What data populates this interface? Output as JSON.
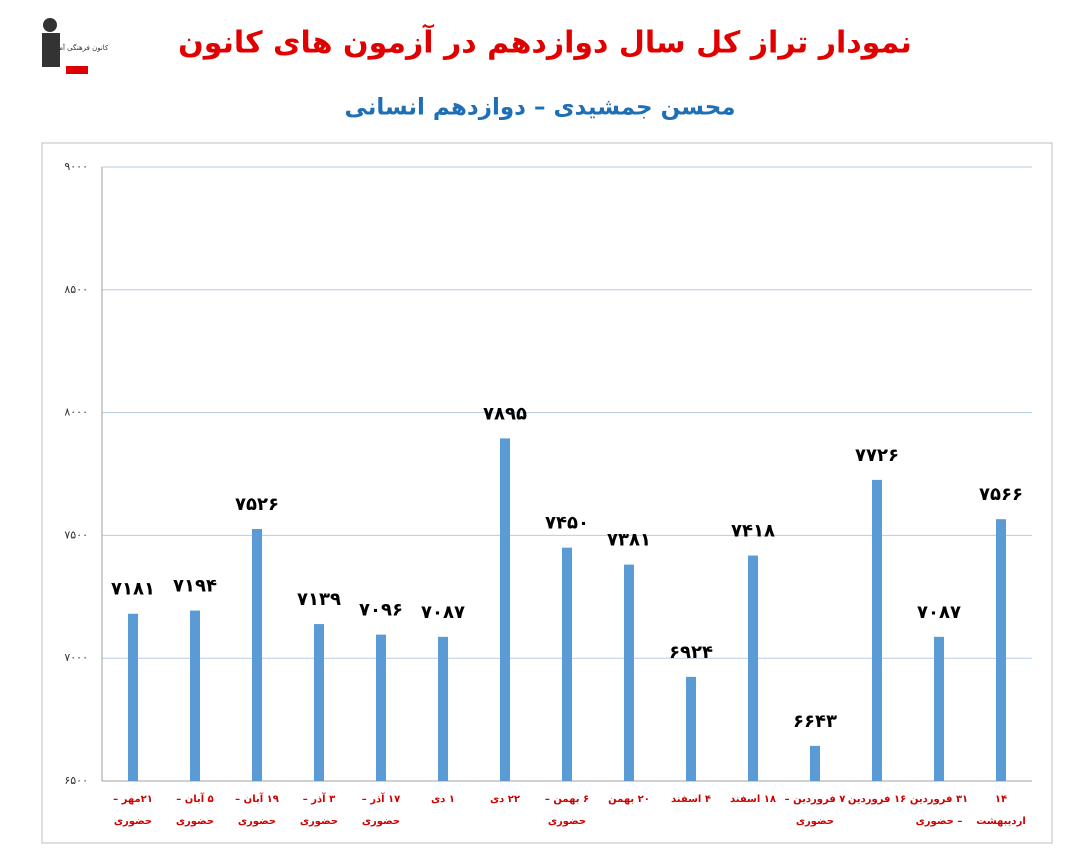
{
  "logo": "کانون فرهنگی آموزش",
  "chart_data": {
    "type": "bar",
    "title": "نمودار تراز کل سال دوازدهم در آزمون های کانون",
    "subtitle": "محسن جمشیدی – دوازدهم انسانی",
    "categories": [
      "۲۱مهر – حضوری",
      "۵ آبان – حضوری",
      "۱۹ آبان – حضوری",
      "۳ آذر – حضوری",
      "۱۷ آذر – حضوری",
      "۱ دی",
      "۲۲ دی",
      "۶ بهمن – حضوری",
      "۲۰ بهمن",
      "۴ اسفند",
      "۱۸ اسفند",
      "۷ فروردین – حضوری",
      "۱۶ فروردین",
      "۳۱ فروردین – حضوری",
      "۱۴ اردیبهشت"
    ],
    "values": [
      7181,
      7194,
      7526,
      7139,
      7096,
      7087,
      7895,
      7450,
      7381,
      6924,
      7418,
      6643,
      7726,
      7087,
      7566
    ],
    "value_labels": [
      "۷۱۸۱",
      "۷۱۹۴",
      "۷۵۲۶",
      "۷۱۳۹",
      "۷۰۹۶",
      "۷۰۸۷",
      "۷۸۹۵",
      "۷۴۵۰",
      "۷۳۸۱",
      "۶۹۲۴",
      "۷۴۱۸",
      "۶۶۴۳",
      "۷۷۲۶",
      "۷۰۸۷",
      "۷۵۶۶"
    ],
    "color": "#5b9bd5",
    "ylim": [
      6500,
      9000
    ],
    "yticks": [
      {
        "value": 6500,
        "label": "۶۵۰۰"
      },
      {
        "value": 7000,
        "label": "۷۰۰۰"
      },
      {
        "value": 7500,
        "label": "۷۵۰۰"
      },
      {
        "value": 8000,
        "label": "۸۰۰۰"
      },
      {
        "value": 8500,
        "label": "۸۵۰۰"
      },
      {
        "value": 9000,
        "label": "۹۰۰۰"
      }
    ],
    "grid": true
  }
}
